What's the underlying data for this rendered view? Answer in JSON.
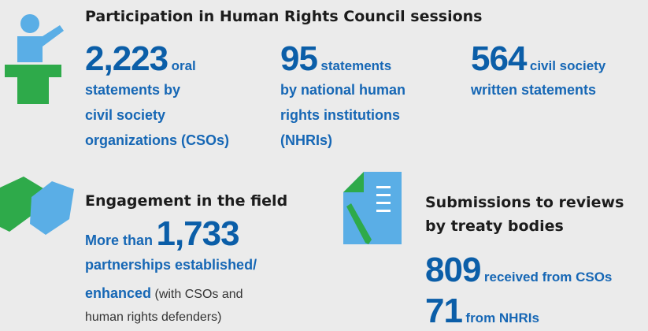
{
  "sections": [
    {
      "title": "Participation in Human Rights Council sessions",
      "items": [
        {
          "number": "2,223",
          "inline": "oral",
          "lines": [
            "statements by",
            "civil society",
            "organizations (CSOs)"
          ]
        },
        {
          "number": "95",
          "inline": "statements",
          "lines": [
            "by national human",
            "rights institutions",
            "(NHRIs)"
          ]
        },
        {
          "number": "564",
          "inline": "civil society",
          "lines": [
            "written statements"
          ]
        }
      ]
    },
    {
      "title": "Engagement in the field",
      "prefix": "More than",
      "number": "1,733",
      "lines": [
        "partnerships established/",
        "enhanced"
      ],
      "note_lines": [
        "(with CSOs and",
        "human rights defenders)"
      ]
    },
    {
      "title_lines": [
        "Submissions to reviews",
        "by treaty bodies"
      ],
      "items": [
        {
          "number": "809",
          "inline": "received from CSOs"
        },
        {
          "number": "71",
          "inline": "from NHRIs"
        }
      ]
    }
  ]
}
